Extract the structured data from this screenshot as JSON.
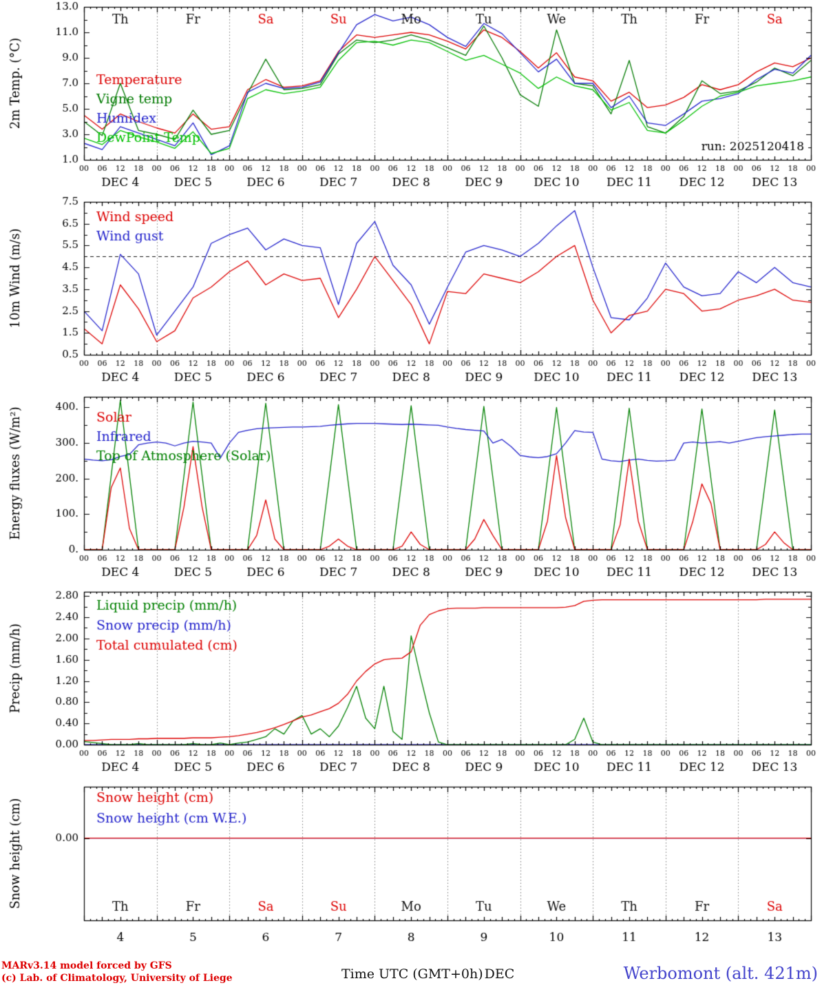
{
  "page": {
    "run_label": "run: 2025120418",
    "footer_left1": "MARv3.14 model forced by GFS",
    "footer_left2": "(c) Lab. of Climatology, University of Liege",
    "footer_center": "Time UTC (GMT+0h)",
    "footer_center2": "DEC",
    "footer_right": "Werbomont (alt. 421m)"
  },
  "axis": {
    "day_names": [
      "Th",
      "Fr",
      "Sa",
      "Su",
      "Mo",
      "Tu",
      "We",
      "Th",
      "Fr",
      "Sa"
    ],
    "weekend_idx": [
      2,
      3,
      9
    ],
    "day_labels": [
      "DEC 4",
      "DEC 5",
      "DEC 6",
      "DEC 7",
      "DEC 8",
      "DEC 9",
      "DEC 10",
      "DEC 11",
      "DEC 12",
      "DEC 13"
    ],
    "day_numbers": [
      "4",
      "5",
      "6",
      "7",
      "8",
      "9",
      "10",
      "11",
      "12",
      "13"
    ],
    "hour_labels": [
      "00",
      "06",
      "12",
      "18"
    ],
    "xlim_hours": [
      0,
      240
    ],
    "weekend_color": "#dd0000",
    "weekday_color": "#111111"
  },
  "chart_data": [
    {
      "type": "line",
      "ylabel": "2m Temp. (°C)",
      "ylim": [
        1.0,
        13.0
      ],
      "yticks": [
        1.0,
        3.0,
        5.0,
        7.0,
        9.0,
        11.0,
        13.0
      ],
      "ydecimals": 1,
      "yminor": 1.0,
      "x_labels": true,
      "legend": [
        {
          "label": "Temperature",
          "color": "#dd0000"
        },
        {
          "label": "Vigne temp",
          "color": "#007a00"
        },
        {
          "label": "Humidex",
          "color": "#2222cc"
        },
        {
          "label": "DewPoint Temp",
          "color": "#00c000"
        }
      ],
      "series": [
        {
          "name": "temperature",
          "color": "#dd0000",
          "step": 6,
          "values": [
            4.5,
            3.4,
            4.6,
            4.0,
            3.5,
            3.1,
            4.6,
            3.4,
            3.6,
            6.5,
            7.3,
            6.7,
            6.8,
            7.2,
            9.5,
            10.8,
            10.6,
            10.8,
            11.0,
            10.8,
            10.3,
            9.7,
            11.2,
            10.6,
            9.5,
            8.2,
            9.4,
            7.5,
            7.2,
            5.6,
            6.3,
            5.1,
            5.3,
            5.9,
            6.9,
            6.5,
            6.9,
            7.9,
            8.6,
            8.3,
            9.0
          ]
        },
        {
          "name": "vigne-temp",
          "color": "#007a00",
          "step": 6,
          "values": [
            4.0,
            2.9,
            7.0,
            3.3,
            3.0,
            2.6,
            4.9,
            3.0,
            3.3,
            6.2,
            8.9,
            6.5,
            6.6,
            6.9,
            9.3,
            10.4,
            10.2,
            10.4,
            10.8,
            10.4,
            9.8,
            9.2,
            11.5,
            9.0,
            6.1,
            5.2,
            11.2,
            7.0,
            6.8,
            4.6,
            8.8,
            3.6,
            3.1,
            4.4,
            7.2,
            6.2,
            6.4,
            7.1,
            8.2,
            7.6,
            8.8
          ]
        },
        {
          "name": "humidex",
          "color": "#2222cc",
          "step": 6,
          "values": [
            2.3,
            1.8,
            3.6,
            3.1,
            2.6,
            2.1,
            3.9,
            1.4,
            2.1,
            6.3,
            7.0,
            6.6,
            6.7,
            7.1,
            9.4,
            11.6,
            12.4,
            11.9,
            12.2,
            11.6,
            10.6,
            9.9,
            11.7,
            10.9,
            9.4,
            7.9,
            8.9,
            7.0,
            7.0,
            5.1,
            6.0,
            3.9,
            3.7,
            4.6,
            5.6,
            5.8,
            6.2,
            7.3,
            8.1,
            7.8,
            9.2
          ]
        },
        {
          "name": "dewpoint-temp",
          "color": "#00c000",
          "step": 6,
          "values": [
            2.7,
            2.2,
            3.3,
            2.8,
            2.4,
            1.9,
            3.2,
            1.5,
            1.9,
            5.8,
            6.5,
            6.2,
            6.4,
            6.7,
            8.8,
            10.2,
            10.3,
            10.0,
            10.4,
            10.2,
            9.5,
            8.8,
            9.2,
            8.5,
            7.8,
            6.6,
            7.5,
            6.8,
            6.5,
            4.9,
            5.5,
            3.3,
            3.1,
            4.1,
            5.2,
            6.0,
            6.3,
            6.8,
            7.0,
            7.2,
            7.5
          ]
        }
      ]
    },
    {
      "type": "line",
      "ylabel": "10m Wind (m/s)",
      "ylim": [
        0.5,
        7.5
      ],
      "yticks": [
        0.5,
        1.5,
        2.5,
        3.5,
        4.5,
        5.5,
        6.5,
        7.5
      ],
      "ydecimals": 1,
      "yminor": 0.5,
      "hline": 5.0,
      "x_labels": true,
      "legend": [
        {
          "label": "Wind speed",
          "color": "#dd0000"
        },
        {
          "label": "Wind gust",
          "color": "#2222cc"
        }
      ],
      "series": [
        {
          "name": "wind-gust",
          "color": "#2222cc",
          "step": 6,
          "values": [
            2.5,
            1.6,
            5.1,
            4.2,
            1.4,
            2.5,
            3.6,
            5.6,
            6.0,
            6.3,
            5.3,
            5.8,
            5.5,
            5.4,
            2.8,
            5.6,
            6.6,
            4.6,
            3.7,
            1.9,
            3.6,
            5.2,
            5.5,
            5.3,
            5.0,
            5.6,
            6.4,
            7.1,
            4.5,
            2.2,
            2.1,
            3.1,
            4.7,
            3.6,
            3.2,
            3.3,
            4.3,
            3.8,
            4.5,
            3.8,
            3.6
          ]
        },
        {
          "name": "wind-speed",
          "color": "#dd0000",
          "step": 6,
          "values": [
            1.7,
            1.0,
            3.7,
            2.6,
            1.1,
            1.6,
            3.1,
            3.6,
            4.3,
            4.8,
            3.7,
            4.2,
            3.9,
            4.0,
            2.2,
            3.5,
            5.0,
            3.9,
            2.8,
            1.0,
            3.4,
            3.3,
            4.2,
            4.0,
            3.8,
            4.3,
            5.0,
            5.5,
            3.0,
            1.5,
            2.3,
            2.5,
            3.5,
            3.3,
            2.5,
            2.6,
            3.0,
            3.2,
            3.5,
            3.0,
            2.9
          ]
        }
      ]
    },
    {
      "type": "line",
      "ylabel": "Energy fluxes (W/m²)",
      "ylim": [
        0,
        430
      ],
      "yticks": [
        0,
        100,
        200,
        300,
        400
      ],
      "ydecimals": 0,
      "ysuffix": ".",
      "yminor": 50,
      "x_labels": true,
      "legend": [
        {
          "label": "Solar",
          "color": "#dd0000"
        },
        {
          "label": "Infrared",
          "color": "#2222cc"
        },
        {
          "label": "Top of Atmosphere (Solar)",
          "color": "#008000"
        }
      ],
      "series": [
        {
          "name": "toa-solar",
          "color": "#008000",
          "step": 3,
          "values": [
            0,
            0,
            0,
            210,
            420,
            210,
            0,
            0,
            0,
            0,
            0,
            208,
            415,
            208,
            0,
            0,
            0,
            0,
            0,
            206,
            412,
            206,
            0,
            0,
            0,
            0,
            0,
            204,
            408,
            204,
            0,
            0,
            0,
            0,
            0,
            202,
            405,
            202,
            0,
            0,
            0,
            0,
            0,
            201,
            403,
            201,
            0,
            0,
            0,
            0,
            0,
            200,
            400,
            200,
            0,
            0,
            0,
            0,
            0,
            199,
            398,
            199,
            0,
            0,
            0,
            0,
            0,
            198,
            396,
            198,
            0,
            0,
            0,
            0,
            0,
            196,
            393,
            196,
            0,
            0,
            0
          ]
        },
        {
          "name": "infrared",
          "color": "#2222cc",
          "step": 3,
          "values": [
            255,
            252,
            250,
            253,
            262,
            268,
            295,
            300,
            303,
            300,
            292,
            300,
            305,
            303,
            300,
            258,
            300,
            330,
            336,
            340,
            342,
            343,
            344,
            345,
            345,
            346,
            347,
            350,
            352,
            354,
            355,
            355,
            355,
            354,
            353,
            352,
            353,
            352,
            351,
            350,
            345,
            341,
            338,
            336,
            334,
            300,
            310,
            290,
            265,
            261,
            259,
            262,
            270,
            300,
            335,
            331,
            330,
            255,
            250,
            248,
            252,
            255,
            251,
            249,
            250,
            252,
            300,
            303,
            300,
            302,
            304,
            300,
            305,
            310,
            315,
            318,
            320,
            322,
            324,
            325,
            325
          ]
        },
        {
          "name": "solar",
          "color": "#dd0000",
          "step": 3,
          "values": [
            0,
            0,
            0,
            175,
            230,
            60,
            0,
            0,
            0,
            0,
            0,
            120,
            290,
            120,
            0,
            0,
            0,
            0,
            0,
            40,
            140,
            30,
            0,
            0,
            0,
            0,
            0,
            10,
            30,
            10,
            0,
            0,
            0,
            0,
            0,
            10,
            50,
            15,
            0,
            0,
            0,
            0,
            0,
            30,
            85,
            40,
            0,
            0,
            0,
            0,
            0,
            80,
            265,
            90,
            0,
            0,
            0,
            0,
            0,
            70,
            255,
            80,
            0,
            0,
            0,
            0,
            0,
            80,
            185,
            130,
            0,
            0,
            0,
            0,
            0,
            15,
            50,
            20,
            0,
            0,
            0
          ]
        }
      ]
    },
    {
      "type": "line",
      "ylabel": "Precip (mm/h)",
      "ylim": [
        0,
        2.88
      ],
      "yticks": [
        0.0,
        0.4,
        0.8,
        1.2,
        1.6,
        2.0,
        2.4,
        2.8
      ],
      "ydecimals": 2,
      "yminor": 0.2,
      "x_labels": true,
      "legend": [
        {
          "label": "Liquid precip (mm/h)",
          "color": "#008000"
        },
        {
          "label": "Snow precip (mm/h)",
          "color": "#2222cc"
        },
        {
          "label": "Total cumulated (cm)",
          "color": "#dd0000"
        }
      ],
      "series": [
        {
          "name": "snow-precip",
          "color": "#2222cc",
          "step": 240,
          "values": [
            0,
            0
          ]
        },
        {
          "name": "liquid-precip",
          "color": "#008000",
          "step": 3,
          "values": [
            0.06,
            0.04,
            0.02,
            0,
            0,
            0,
            0.02,
            0,
            0,
            0,
            0,
            0,
            0.02,
            0,
            0,
            0.03,
            0,
            0.03,
            0.05,
            0.1,
            0.15,
            0.3,
            0.2,
            0.45,
            0.55,
            0.2,
            0.3,
            0.15,
            0.35,
            0.7,
            1.1,
            0.5,
            0.3,
            1.1,
            0.25,
            0.1,
            2.05,
            1.3,
            0.6,
            0.05,
            0,
            0,
            0,
            0,
            0,
            0,
            0,
            0,
            0,
            0,
            0,
            0,
            0,
            0,
            0.1,
            0.5,
            0.05,
            0,
            0,
            0,
            0,
            0,
            0,
            0,
            0,
            0,
            0,
            0,
            0,
            0,
            0,
            0,
            0,
            0,
            0,
            0,
            0,
            0,
            0,
            0,
            0
          ]
        },
        {
          "name": "total-cumulated",
          "color": "#dd0000",
          "step": 3,
          "values": [
            0.08,
            0.08,
            0.09,
            0.1,
            0.1,
            0.1,
            0.11,
            0.11,
            0.12,
            0.12,
            0.12,
            0.12,
            0.13,
            0.13,
            0.13,
            0.14,
            0.15,
            0.17,
            0.2,
            0.23,
            0.27,
            0.32,
            0.38,
            0.45,
            0.52,
            0.56,
            0.62,
            0.68,
            0.78,
            0.95,
            1.2,
            1.38,
            1.52,
            1.6,
            1.62,
            1.63,
            1.75,
            2.25,
            2.45,
            2.52,
            2.56,
            2.57,
            2.57,
            2.57,
            2.58,
            2.58,
            2.58,
            2.58,
            2.58,
            2.58,
            2.58,
            2.58,
            2.58,
            2.59,
            2.62,
            2.7,
            2.72,
            2.73,
            2.73,
            2.73,
            2.73,
            2.73,
            2.73,
            2.73,
            2.73,
            2.73,
            2.73,
            2.73,
            2.73,
            2.73,
            2.73,
            2.73,
            2.73,
            2.73,
            2.73,
            2.74,
            2.74,
            2.74,
            2.74,
            2.74,
            2.74
          ]
        }
      ]
    },
    {
      "type": "line",
      "ylabel": "Snow height (cm)",
      "ylim": [
        -0.8,
        0.5
      ],
      "yticks": [
        0.0
      ],
      "ydecimals": 2,
      "x_labels": false,
      "legend": [
        {
          "label": "Snow height (cm)",
          "color": "#dd0000"
        },
        {
          "label": "Snow height (cm W.E.)",
          "color": "#2222cc"
        }
      ],
      "series": [
        {
          "name": "snow-height-we",
          "color": "#2222cc",
          "step": 240,
          "values": [
            0,
            0
          ]
        },
        {
          "name": "snow-height",
          "color": "#dd0000",
          "step": 240,
          "values": [
            0,
            0
          ]
        }
      ]
    }
  ]
}
